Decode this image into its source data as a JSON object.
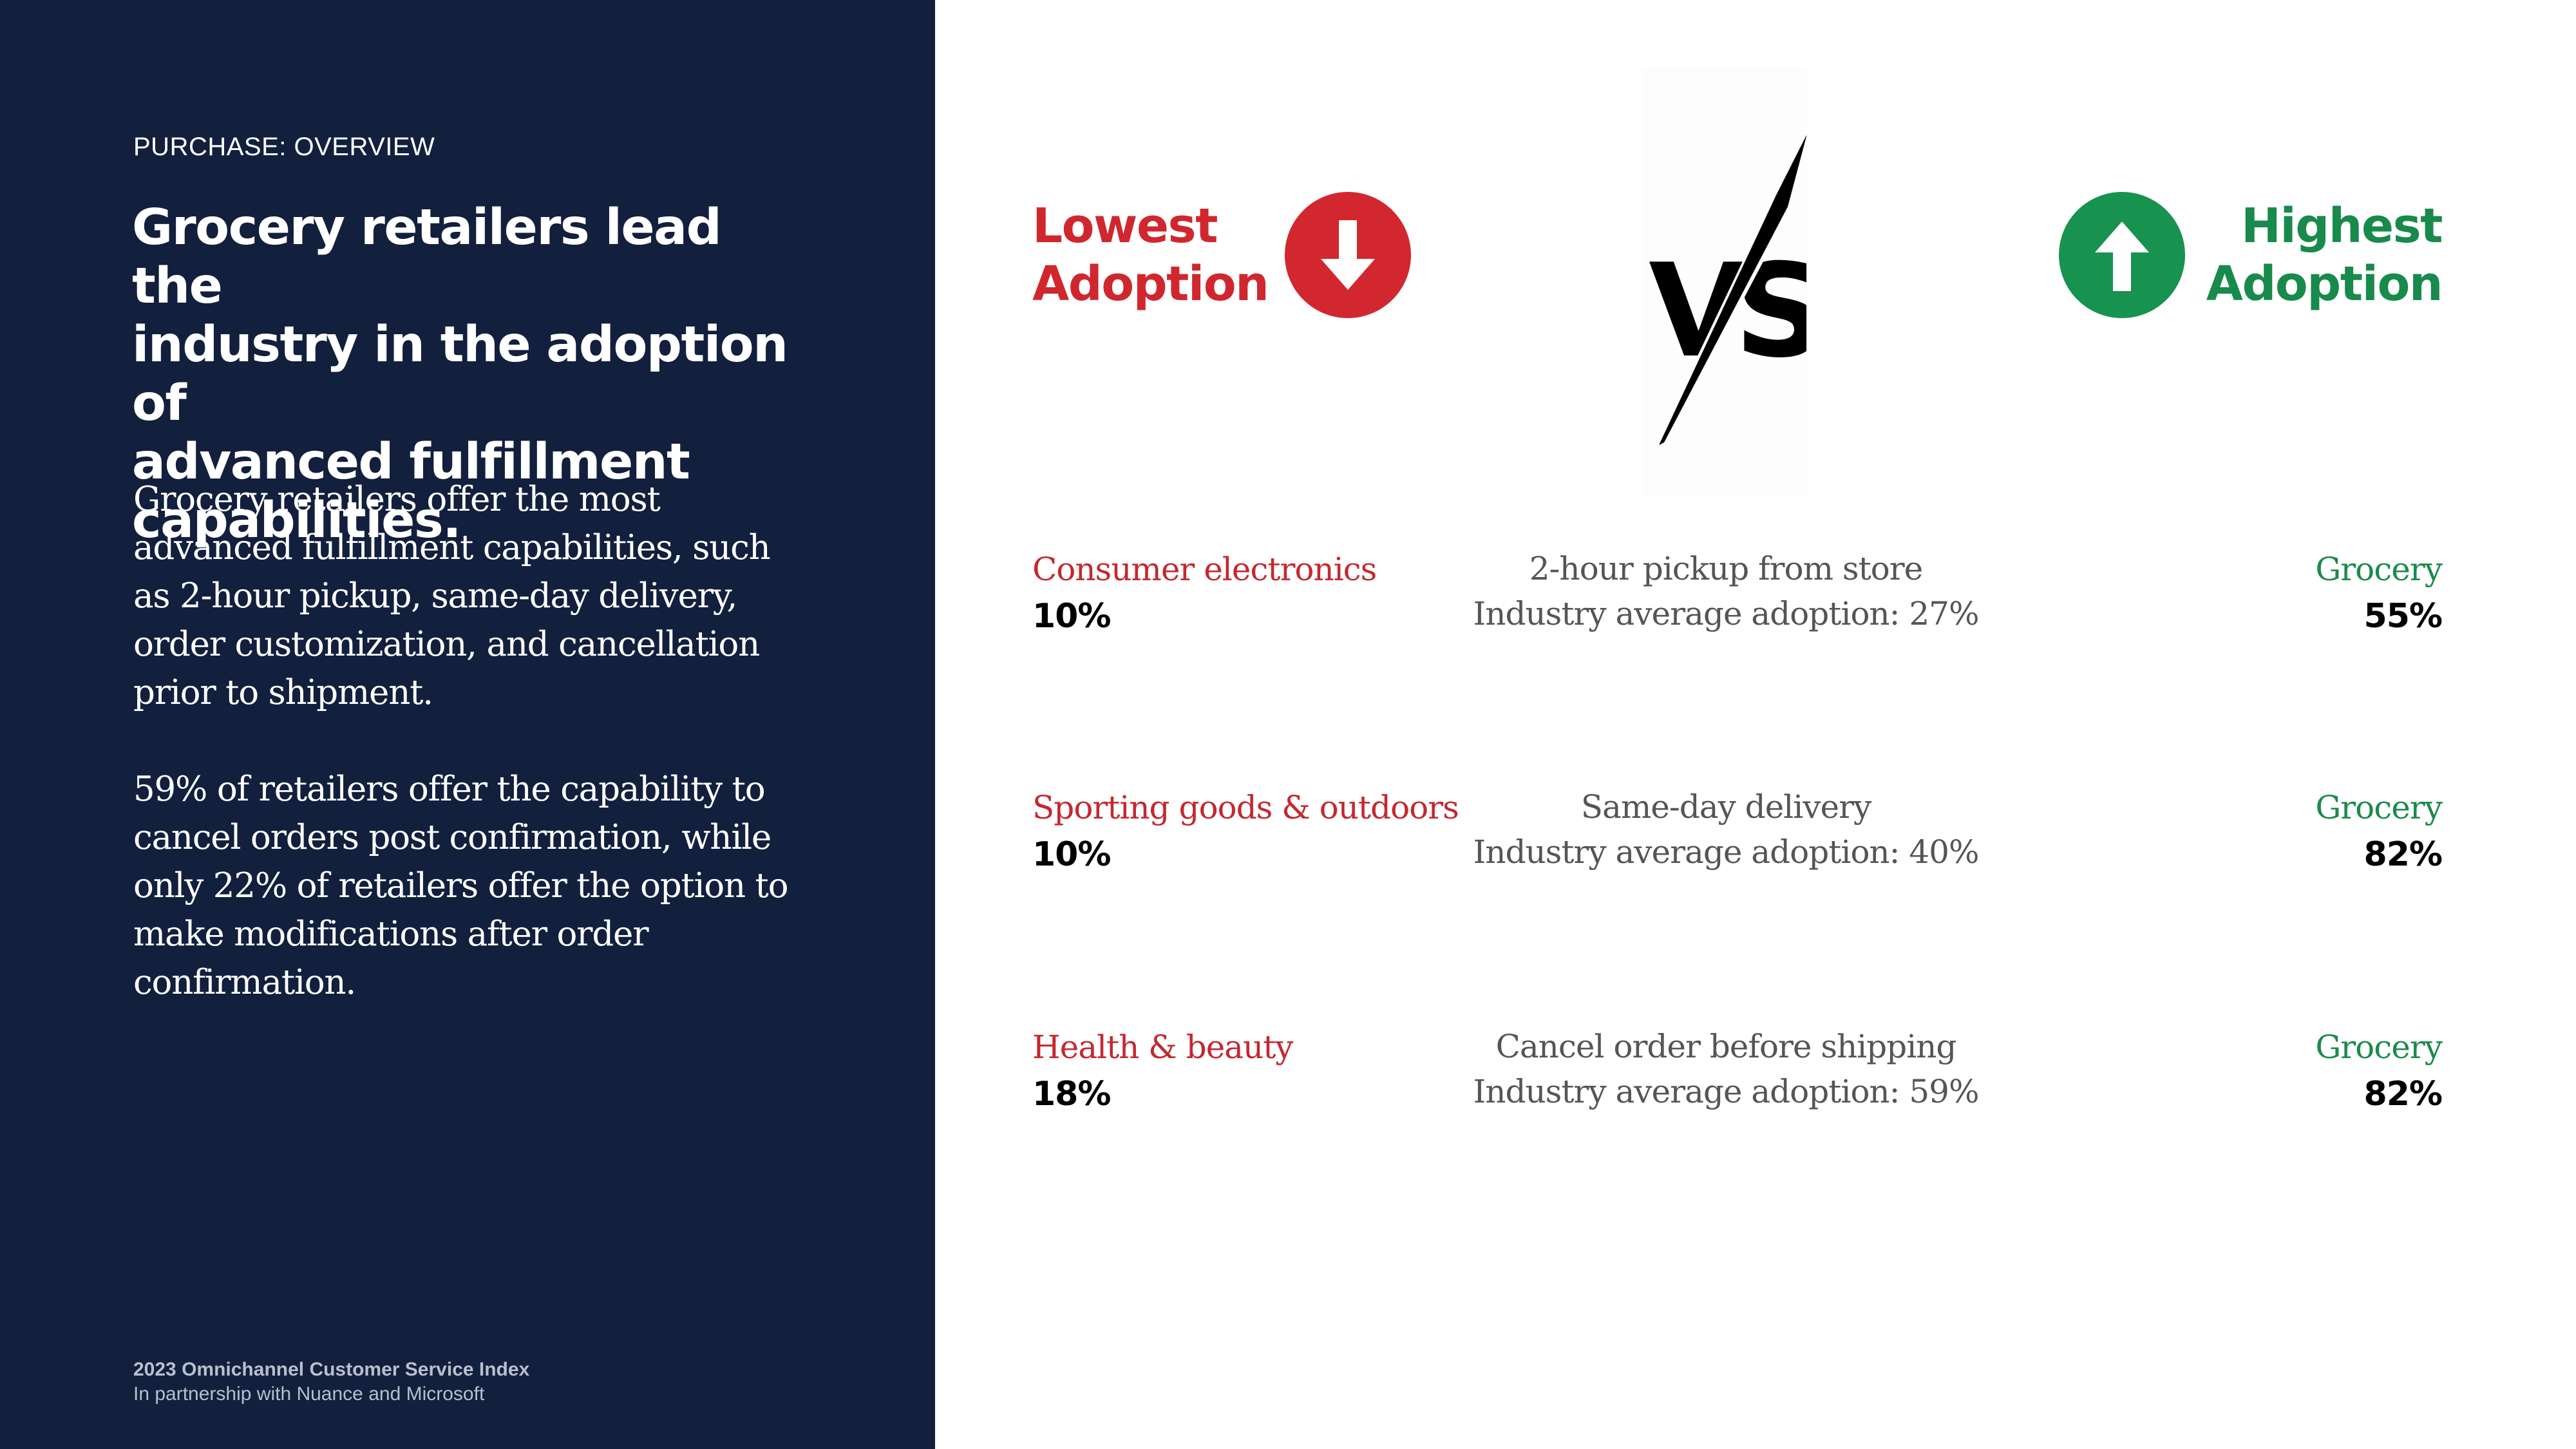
{
  "left": {
    "eyebrow": "PURCHASE: OVERVIEW",
    "headline_lines": [
      "Grocery retailers lead the",
      "industry in the adoption of",
      "advanced fulfillment",
      "capabilities."
    ],
    "body1_lines": [
      "Grocery retailers offer the most",
      "advanced fulfillment capabilities, such",
      "as 2-hour pickup, same-day delivery,",
      "order customization, and cancellation",
      "prior to shipment."
    ],
    "body2_lines": [
      "59% of retailers offer the capability to",
      "cancel orders post confirmation, while",
      "only 22% of retailers offer the option to",
      "make modifications after order",
      "confirmation."
    ],
    "footer_title": "2023 Omnichannel Customer Service Index",
    "footer_sub": "In partnership with Nuance and Microsoft"
  },
  "header": {
    "lowest_lines": [
      "Lowest",
      "Adoption"
    ],
    "highest_lines": [
      "Highest",
      "Adoption"
    ],
    "vs_text": "VS"
  },
  "rows": [
    {
      "low_category": "Consumer electronics",
      "low_value": "10%",
      "capability": "2-hour pickup from store",
      "industry_avg": "Industry average adoption: 27%",
      "high_category": "Grocery",
      "high_value": "55%"
    },
    {
      "low_category": "Sporting goods & outdoors",
      "low_value": "10%",
      "capability": "Same-day delivery",
      "industry_avg": "Industry average adoption: 40%",
      "high_category": "Grocery",
      "high_value": "82%"
    },
    {
      "low_category": "Health & beauty",
      "low_value": "18%",
      "capability": "Cancel order before shipping",
      "industry_avg": "Industry average adoption: 59%",
      "high_category": "Grocery",
      "high_value": "82%"
    }
  ],
  "colors": {
    "navy": "#121f3d",
    "low_red": "#d3272f",
    "high_green": "#17924f"
  },
  "icons": {
    "down": "arrow-down-circle-icon",
    "up": "arrow-up-circle-icon",
    "versus": "versus-icon"
  }
}
